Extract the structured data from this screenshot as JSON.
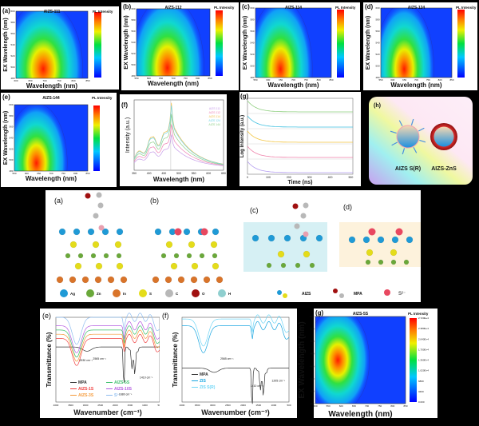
{
  "heatmaps": [
    {
      "panel": "(a)",
      "title": "AIZS-111",
      "xlabel": "Wavelength (nm)",
      "ylabel": "EX Wavelength (nm)",
      "cbar_title": "PL Intensity",
      "xticks": [
        "600",
        "650",
        "700",
        "750",
        "800",
        "850"
      ],
      "yticks": [
        "480",
        "500",
        "520",
        "540",
        "560",
        "580",
        "600"
      ]
    },
    {
      "panel": "(b)",
      "title": "AIZS-112",
      "xlabel": "Wavelength (nm)",
      "ylabel": "EX Wavelength (nm)",
      "cbar_title": "PL Intensity",
      "xticks": [
        "550",
        "600",
        "650",
        "700",
        "750",
        "800",
        "850"
      ],
      "yticks": [
        "480",
        "500",
        "520",
        "540",
        "560",
        "580",
        "600"
      ]
    },
    {
      "panel": "(c)",
      "title": "AIZS-114",
      "xlabel": "Wavelength (nm)",
      "ylabel": "EX Wavelength (nm)",
      "cbar_title": "PL Intensity",
      "xticks": [
        "550",
        "600",
        "650",
        "700",
        "750",
        "800",
        "850"
      ],
      "yticks": [
        "480",
        "500",
        "520",
        "540",
        "560",
        "580",
        "600"
      ]
    },
    {
      "panel": "(d)",
      "title": "AIZS-124",
      "xlabel": "Wavelength (nm)",
      "ylabel": "EX Wavelength (nm)",
      "cbar_title": "PL Intensity",
      "xticks": [
        "550",
        "600",
        "650",
        "700",
        "750",
        "800",
        "850"
      ],
      "yticks": [
        "480",
        "500",
        "520",
        "540",
        "560",
        "580",
        "600"
      ]
    },
    {
      "panel": "(e)",
      "title": "AIZS-144",
      "xlabel": "Wavelength (nm)",
      "ylabel": "EX Wavelength (nm)",
      "cbar_title": "PL Intensity",
      "xticks": [
        "550",
        "600",
        "650",
        "700",
        "750",
        "800",
        "850"
      ],
      "yticks": [
        "480",
        "500",
        "520",
        "540",
        "560",
        "580",
        "600"
      ]
    },
    {
      "panel": "(g)",
      "title": "AIZS-5S",
      "xlabel": "Wavelength (nm)",
      "ylabel": "EX Wavelength (nm)",
      "cbar_title": "PL Intensity",
      "xticks": [
        "500",
        "550",
        "600",
        "650",
        "700",
        "750",
        "800",
        "850"
      ],
      "yticks": [
        "400",
        "420",
        "440",
        "460",
        "480",
        "500",
        "520",
        "540"
      ],
      "cbar_ticks": [
        "2.720E+4",
        "2.380E+4",
        "2.040E+4",
        "1.700E+4",
        "1.360E+4",
        "1.020E+4",
        "6800",
        "3400",
        "0.000"
      ]
    }
  ],
  "pl_spectra": {
    "panel": "(f)",
    "xlabel": "Wavelength (nm)",
    "ylabel": "Intensity (a.u.)",
    "xticks": [
      "350",
      "400",
      "450",
      "500",
      "550",
      "600",
      "650"
    ],
    "legend": [
      "AIZS 111",
      "AIZS 112",
      "AIZS 114",
      "AIZS 124",
      "AIZS 144"
    ],
    "colors": [
      "#c59be8",
      "#ee82b4",
      "#f4c04e",
      "#6fd3e6",
      "#8fd08a"
    ]
  },
  "decay": {
    "panel": "(g)",
    "xlabel": "Time (ns)",
    "ylabel": "Log Intensity (a.u.)",
    "xticks": [
      "0",
      "100",
      "200",
      "300",
      "400",
      "500"
    ],
    "colors": [
      "#8fcf7f",
      "#3fc0e0",
      "#f2c43e",
      "#ef7fa8",
      "#b39cf0"
    ]
  },
  "scheme": {
    "panel": "(h)",
    "labels": [
      "AIZS S(R)",
      "AIZS-ZnS"
    ]
  },
  "structures": {
    "panels": [
      "(a)",
      "(b)",
      "(c)",
      "(d)"
    ],
    "legend": [
      {
        "label": "Ag",
        "color": "#1f9ad6"
      },
      {
        "label": "Zn",
        "color": "#6aa83a"
      },
      {
        "label": "In",
        "color": "#d9742a"
      },
      {
        "label": "S",
        "color": "#e4dc1a"
      },
      {
        "label": "C",
        "color": "#b8b8b8"
      },
      {
        "label": "O",
        "color": "#a01010"
      },
      {
        "label": "H",
        "color": "#8fcfcf"
      }
    ],
    "key": [
      "AIZS",
      "MPA",
      "S²⁻"
    ]
  },
  "ftir_e": {
    "panel": "(e)",
    "xlabel": "Wavenumber (cm⁻¹)",
    "ylabel": "Transmittance (%)",
    "xticks": [
      "4000",
      "3500",
      "3000",
      "2500",
      "2000",
      "1500",
      "1000",
      "500"
    ],
    "legend": [
      {
        "label": "MPA",
        "color": "#333333"
      },
      {
        "label": "AIZS-1S",
        "color": "#f04040"
      },
      {
        "label": "AIZS-3S",
        "color": "#f59a3a"
      },
      {
        "label": "AIZS-5S",
        "color": "#3bbf6a"
      },
      {
        "label": "AIZS-10S",
        "color": "#b45be0"
      },
      {
        "label": "S²⁻",
        "color": "#8fbdf0"
      }
    ],
    "annotations": [
      "2930 cm⁻¹",
      "2565 cm⁻¹",
      "1410 cm⁻¹",
      "1680 cm⁻¹"
    ]
  },
  "ftir_f": {
    "panel": "(f)",
    "xlabel": "Wavenumber (cm⁻¹)",
    "ylabel": "Transmittance (%)",
    "xticks": [
      "4000",
      "3500",
      "3000",
      "2500",
      "2000",
      "1500",
      "1000",
      "500"
    ],
    "legend": [
      {
        "label": "MPA",
        "color": "#333333"
      },
      {
        "label": "ZIS",
        "color": "#1aa6e0"
      },
      {
        "label": "ZIS S(R)",
        "color": "#6fd6f6"
      }
    ],
    "annotations": [
      "2565 cm⁻¹",
      "1410 cm⁻¹",
      "1205 cm⁻¹"
    ]
  }
}
